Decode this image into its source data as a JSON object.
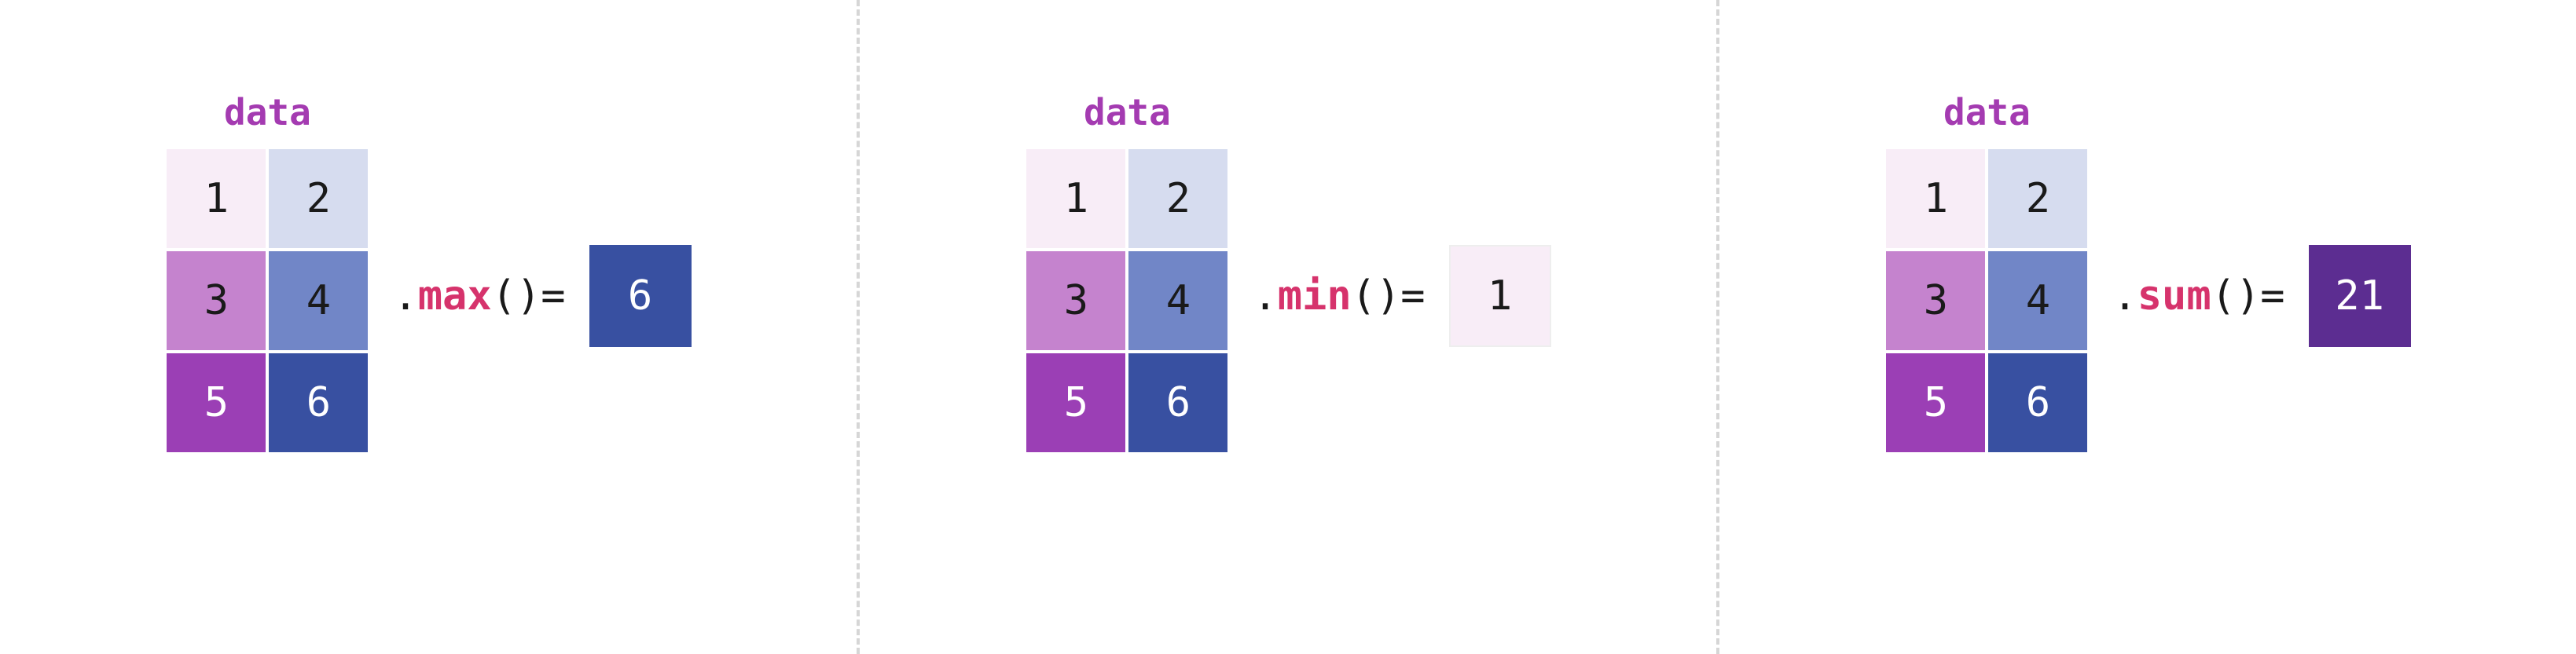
{
  "title_color": "#a43bb1",
  "method_color": "#d6336c",
  "text_color": "#1a1a1a",
  "cell_border": "#ffffff",
  "panels": [
    {
      "title": "data",
      "matrix": [
        {
          "v": "1",
          "bg": "#f8edf7",
          "fg": "#1a1a1a"
        },
        {
          "v": "2",
          "bg": "#d6dcef",
          "fg": "#1a1a1a"
        },
        {
          "v": "3",
          "bg": "#c583ce",
          "fg": "#1a1a1a"
        },
        {
          "v": "4",
          "bg": "#7186c7",
          "fg": "#1a1a1a"
        },
        {
          "v": "5",
          "bg": "#9b3fb5",
          "fg": "#ffffff"
        },
        {
          "v": "6",
          "bg": "#3850a1",
          "fg": "#ffffff"
        }
      ],
      "method": "max",
      "result": {
        "v": "6",
        "bg": "#3850a1",
        "fg": "#ffffff",
        "border": "#3850a1"
      }
    },
    {
      "title": "data",
      "matrix": [
        {
          "v": "1",
          "bg": "#f8edf7",
          "fg": "#1a1a1a"
        },
        {
          "v": "2",
          "bg": "#d6dcef",
          "fg": "#1a1a1a"
        },
        {
          "v": "3",
          "bg": "#c583ce",
          "fg": "#1a1a1a"
        },
        {
          "v": "4",
          "bg": "#7186c7",
          "fg": "#1a1a1a"
        },
        {
          "v": "5",
          "bg": "#9b3fb5",
          "fg": "#ffffff"
        },
        {
          "v": "6",
          "bg": "#3850a1",
          "fg": "#ffffff"
        }
      ],
      "method": "min",
      "result": {
        "v": "1",
        "bg": "#f8edf7",
        "fg": "#1a1a1a",
        "border": "#eeeeee"
      }
    },
    {
      "title": "data",
      "matrix": [
        {
          "v": "1",
          "bg": "#f8edf7",
          "fg": "#1a1a1a"
        },
        {
          "v": "2",
          "bg": "#d6dcef",
          "fg": "#1a1a1a"
        },
        {
          "v": "3",
          "bg": "#c583ce",
          "fg": "#1a1a1a"
        },
        {
          "v": "4",
          "bg": "#7186c7",
          "fg": "#1a1a1a"
        },
        {
          "v": "5",
          "bg": "#9b3fb5",
          "fg": "#ffffff"
        },
        {
          "v": "6",
          "bg": "#3850a1",
          "fg": "#ffffff"
        }
      ],
      "method": "sum",
      "result": {
        "v": "21",
        "bg": "#5c2d91",
        "fg": "#ffffff",
        "border": "#5c2d91"
      }
    }
  ],
  "syntax": {
    "dot": ".",
    "open": "(",
    "close": ")",
    "eq": " = "
  }
}
